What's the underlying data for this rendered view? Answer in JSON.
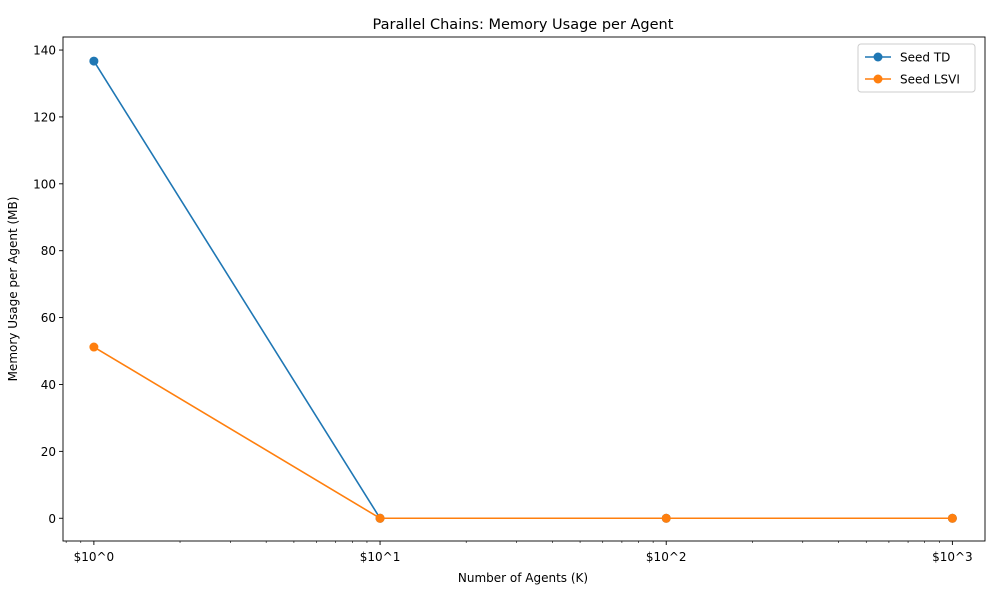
{
  "chart_data": {
    "type": "line",
    "title": "Parallel Chains: Memory Usage per Agent",
    "xlabel": "Number of Agents (K)",
    "ylabel": "Memory Usage per Agent (MB)",
    "x_scale": "log",
    "x": [
      1,
      10,
      100,
      1000
    ],
    "x_tick_labels": [
      "$10^0",
      "$10^1",
      "$10^2",
      "$10^3"
    ],
    "xlim": [
      0.78,
      1300
    ],
    "ylim": [
      -6.8,
      143.9
    ],
    "y_ticks": [
      0,
      20,
      40,
      60,
      80,
      100,
      120,
      140
    ],
    "grid": false,
    "legend_position": "top-right",
    "series": [
      {
        "name": "Seed TD",
        "values": [
          136.7,
          0,
          0,
          0
        ],
        "color": "#1f77b4"
      },
      {
        "name": "Seed LSVI",
        "values": [
          51.2,
          0,
          0,
          0
        ],
        "color": "#ff7f0e"
      }
    ]
  }
}
